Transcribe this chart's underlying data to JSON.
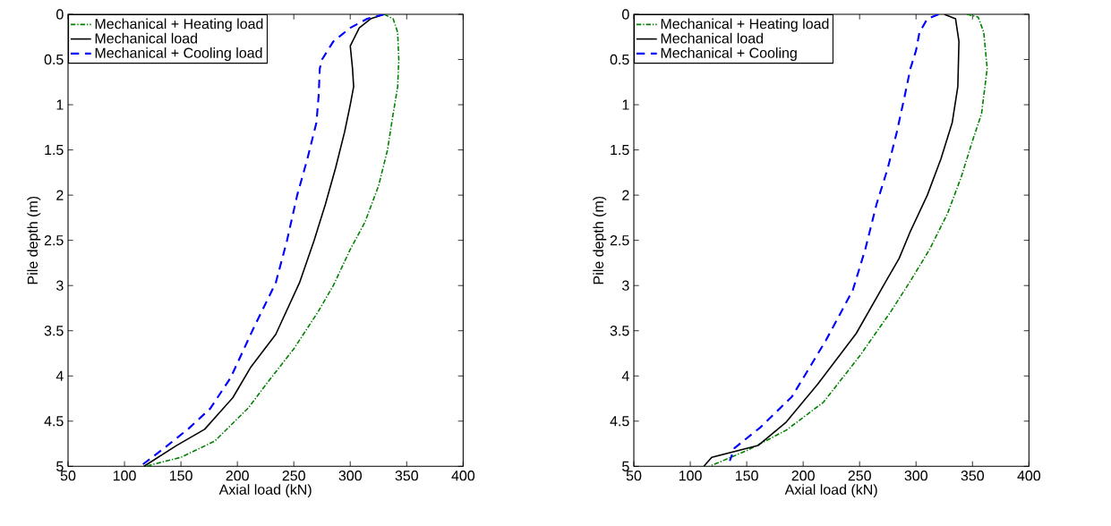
{
  "chart_data": [
    {
      "type": "line",
      "xlabel": "Axial load (kN)",
      "ylabel": "Pile depth (m)",
      "xlim": [
        50,
        400
      ],
      "xticks": [
        50,
        100,
        150,
        200,
        250,
        300,
        350,
        400
      ],
      "ylim": [
        5,
        0
      ],
      "yticks": [
        0,
        0.5,
        1,
        1.5,
        2,
        2.5,
        3,
        3.5,
        4,
        4.5,
        5
      ],
      "legend": "top left",
      "series": [
        {
          "name": "Mechanical + Heating load",
          "color": "#008000",
          "line_style": "dashed",
          "x": [
            330,
            338,
            342,
            343,
            342,
            338,
            333,
            325,
            313,
            300,
            285,
            271,
            250,
            225,
            210,
            180,
            150,
            134,
            119
          ],
          "values": [
            0,
            0.05,
            0.2,
            0.5,
            0.8,
            1.1,
            1.5,
            1.9,
            2.3,
            2.6,
            3.0,
            3.3,
            3.7,
            4.1,
            4.35,
            4.72,
            4.9,
            4.95,
            5.0
          ]
        },
        {
          "name": "Mechanical load",
          "color": "#000000",
          "line_style": "solid",
          "x": [
            330,
            318,
            308,
            300,
            302,
            303,
            300,
            295,
            287,
            278,
            268,
            255,
            234,
            212,
            196,
            171,
            146,
            121,
            117
          ],
          "values": [
            0,
            0.05,
            0.15,
            0.35,
            0.6,
            0.8,
            1.0,
            1.3,
            1.7,
            2.1,
            2.5,
            2.97,
            3.54,
            3.9,
            4.24,
            4.59,
            4.77,
            4.97,
            5.0
          ]
        },
        {
          "name": "Mechanical + Cooling load",
          "color": "#0000ff",
          "line_style": "dashed",
          "x": [
            330,
            315,
            300,
            285,
            275,
            273,
            272,
            270,
            262,
            253,
            244,
            234,
            214,
            194,
            176,
            157,
            134,
            116
          ],
          "values": [
            0,
            0.05,
            0.15,
            0.3,
            0.5,
            0.6,
            0.9,
            1.2,
            1.6,
            2.0,
            2.5,
            2.97,
            3.48,
            4.02,
            4.36,
            4.58,
            4.81,
            4.98
          ]
        }
      ]
    },
    {
      "type": "line",
      "xlabel": "Axial load (kN)",
      "ylabel": "Pile depth (m)",
      "xlim": [
        50,
        400
      ],
      "xticks": [
        50,
        100,
        150,
        200,
        250,
        300,
        350,
        400
      ],
      "ylim": [
        5,
        0
      ],
      "yticks": [
        0,
        0.5,
        1,
        1.5,
        2,
        2.5,
        3,
        3.5,
        4,
        4.5,
        5
      ],
      "legend": "top left",
      "series": [
        {
          "name": "Mechanical + Heating load",
          "color": "#008000",
          "line_style": "dashed",
          "x": [
            345,
            355,
            360,
            363,
            358,
            350,
            340,
            328,
            312,
            295,
            277,
            250,
            218,
            185,
            151,
            117
          ],
          "values": [
            0,
            0.03,
            0.2,
            0.6,
            1.1,
            1.4,
            1.8,
            2.2,
            2.6,
            2.95,
            3.3,
            3.78,
            4.29,
            4.6,
            4.82,
            5.0
          ]
        },
        {
          "name": "Mechanical load",
          "color": "#000000",
          "line_style": "solid",
          "x": [
            325,
            335,
            338,
            337,
            332,
            322,
            310,
            295,
            285,
            273,
            247,
            213,
            185,
            160,
            119,
            112
          ],
          "values": [
            0,
            0.05,
            0.3,
            0.8,
            1.2,
            1.6,
            2.0,
            2.4,
            2.7,
            2.96,
            3.53,
            4.09,
            4.51,
            4.77,
            4.9,
            5.0
          ]
        },
        {
          "name": "Mechanical + Cooling",
          "color": "#0000ff",
          "line_style": "dashed",
          "x": [
            320,
            310,
            303,
            300,
            295,
            290,
            283,
            275,
            265,
            255,
            244,
            220,
            190,
            162,
            139,
            135
          ],
          "values": [
            0,
            0.05,
            0.2,
            0.4,
            0.6,
            0.9,
            1.3,
            1.7,
            2.1,
            2.6,
            3.05,
            3.61,
            4.23,
            4.57,
            4.8,
            4.94
          ]
        }
      ]
    }
  ]
}
